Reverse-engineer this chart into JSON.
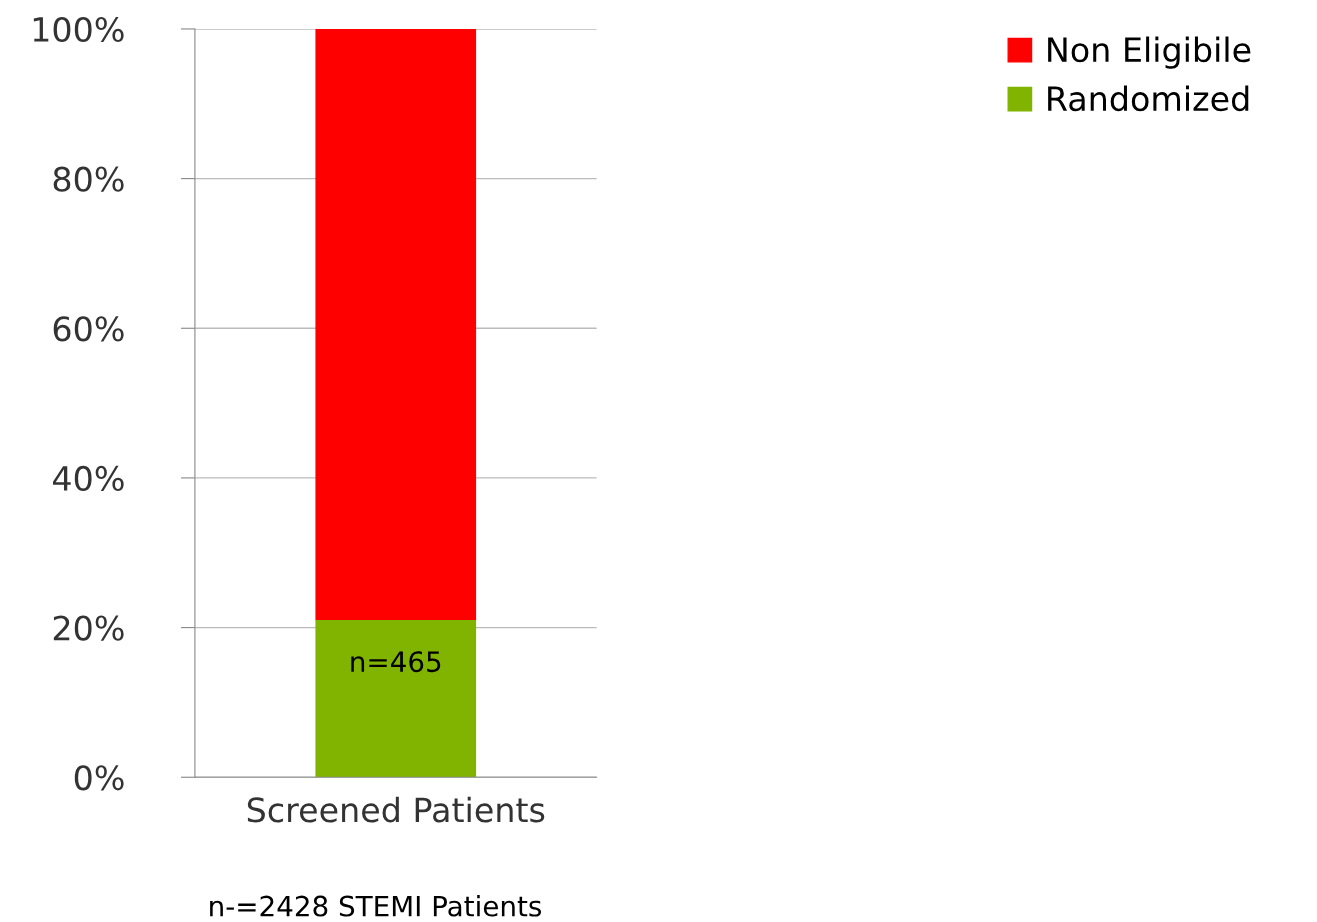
{
  "chart_data": {
    "type": "bar",
    "stacked": true,
    "categories": [
      "Screened Patients"
    ],
    "series": [
      {
        "name": "Randomized",
        "color": "#80b400",
        "values": [
          21
        ]
      },
      {
        "name": "Non Eligibile",
        "color": "#ff0000",
        "values": [
          79
        ]
      }
    ],
    "ylim": [
      0,
      100
    ],
    "yticks": [
      {
        "value": 0,
        "label": "0%"
      },
      {
        "value": 20,
        "label": "20%"
      },
      {
        "value": 40,
        "label": "40%"
      },
      {
        "value": 60,
        "label": "60%"
      },
      {
        "value": 80,
        "label": "80%"
      },
      {
        "value": 100,
        "label": "100%"
      }
    ],
    "grid": "y",
    "legend": "top right",
    "annotations": [
      {
        "text": "n=465",
        "x": "Screened Patients",
        "y": 21
      },
      "n-=2428 STEMI Patients"
    ]
  }
}
